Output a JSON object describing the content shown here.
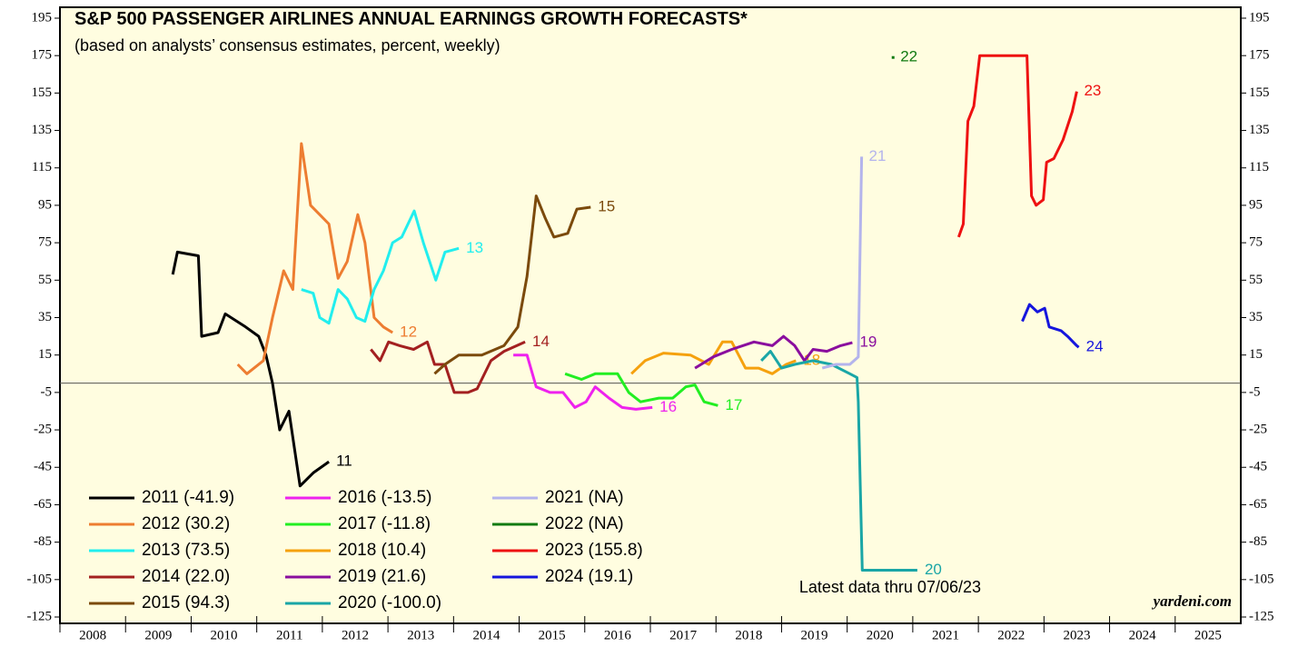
{
  "chart_data": {
    "type": "line",
    "title": "S&P 500 PASSENGER AIRLINES ANNUAL EARNINGS GROWTH FORECASTS*",
    "subtitle": "(based on analysts’ consensus estimates, percent, weekly)",
    "annotations": [
      "Latest data thru 07/06/23",
      "yardeni.com"
    ],
    "xlim": [
      2008,
      2026
    ],
    "xticks": [
      2008,
      2009,
      2010,
      2011,
      2012,
      2013,
      2014,
      2015,
      2016,
      2017,
      2018,
      2019,
      2020,
      2021,
      2022,
      2023,
      2024,
      2025
    ],
    "ylim": [
      -125,
      195
    ],
    "yticks": [
      -125,
      -105,
      -85,
      -65,
      -45,
      -25,
      -5,
      15,
      35,
      55,
      75,
      95,
      115,
      135,
      155,
      175,
      195
    ],
    "zero_line": 0,
    "series": [
      {
        "name": "2011 (-41.9)",
        "label": "11",
        "color": "#000000",
        "x": [
          2009.72,
          2009.79,
          2010.11,
          2010.16,
          2010.41,
          2010.52,
          2010.83,
          2011.03,
          2011.14,
          2011.24,
          2011.35,
          2011.49,
          2011.66,
          2011.86,
          2012.1
        ],
        "values": [
          58,
          70,
          68,
          25,
          27,
          37,
          30,
          25,
          15,
          0,
          -25,
          -15,
          -55,
          -48,
          -42
        ]
      },
      {
        "name": "2012 (30.2)",
        "label": "12",
        "color": "#ed7d31",
        "x": [
          2010.71,
          2010.85,
          2011.1,
          2011.24,
          2011.41,
          2011.55,
          2011.68,
          2011.82,
          2011.96,
          2012.1,
          2012.24,
          2012.38,
          2012.54,
          2012.65,
          2012.79,
          2012.93,
          2013.07
        ],
        "values": [
          10,
          5,
          12,
          35,
          60,
          50,
          128,
          95,
          90,
          85,
          56,
          65,
          90,
          75,
          35,
          30,
          27
        ]
      },
      {
        "name": "2013 (73.5)",
        "label": "13",
        "color": "#22eeee",
        "x": [
          2011.68,
          2011.86,
          2011.96,
          2012.1,
          2012.24,
          2012.38,
          2012.52,
          2012.65,
          2012.79,
          2012.93,
          2013.07,
          2013.21,
          2013.4,
          2013.54,
          2013.73,
          2013.87,
          2014.08
        ],
        "values": [
          50,
          48,
          35,
          32,
          50,
          45,
          35,
          33,
          50,
          60,
          75,
          78,
          92,
          75,
          55,
          70,
          72
        ]
      },
      {
        "name": "2014 (22.0)",
        "label": "14",
        "color": "#a32020",
        "x": [
          2012.74,
          2012.88,
          2013.01,
          2013.18,
          2013.39,
          2013.6,
          2013.71,
          2013.87,
          2014.01,
          2014.22,
          2014.36,
          2014.57,
          2014.77,
          2015.09
        ],
        "values": [
          18,
          12,
          22,
          20,
          18,
          22,
          10,
          10,
          -5,
          -5,
          -3,
          12,
          17,
          22
        ]
      },
      {
        "name": "2015 (94.3)",
        "label": "15",
        "color": "#7b4a0c",
        "x": [
          2013.71,
          2013.87,
          2014.08,
          2014.43,
          2014.77,
          2014.98,
          2015.12,
          2015.26,
          2015.4,
          2015.53,
          2015.74,
          2015.88,
          2016.09
        ],
        "values": [
          5,
          10,
          15,
          15,
          20,
          30,
          57,
          100,
          88,
          78,
          80,
          93,
          94
        ]
      },
      {
        "name": "2016 (-13.5)",
        "label": "16",
        "color": "#ee22ee",
        "x": [
          2014.91,
          2015.12,
          2015.26,
          2015.47,
          2015.67,
          2015.85,
          2016.02,
          2016.16,
          2016.37,
          2016.57,
          2016.78,
          2017.03
        ],
        "values": [
          15,
          15,
          -2,
          -5,
          -5,
          -13,
          -10,
          -2,
          -8,
          -13,
          -14,
          -13
        ]
      },
      {
        "name": "2017 (-11.8)",
        "label": "17",
        "color": "#22ee22",
        "x": [
          2015.7,
          2015.95,
          2016.16,
          2016.5,
          2016.67,
          2016.85,
          2017.13,
          2017.34,
          2017.54,
          2017.68,
          2017.82,
          2018.03
        ],
        "values": [
          5,
          2,
          5,
          5,
          -5,
          -10,
          -8,
          -8,
          -2,
          -1,
          -10,
          -12
        ]
      },
      {
        "name": "2018 (10.4)",
        "label": "18",
        "color": "#f5a10e",
        "x": [
          2016.71,
          2016.92,
          2017.2,
          2017.61,
          2017.89,
          2018.1,
          2018.24,
          2018.45,
          2018.65,
          2018.86,
          2019.07,
          2019.22
        ],
        "values": [
          5,
          12,
          16,
          15,
          10,
          22,
          22,
          8,
          8,
          5,
          10,
          12
        ]
      },
      {
        "name": "2019 (21.6)",
        "label": "19",
        "color": "#8a0e9e",
        "x": [
          2017.68,
          2017.96,
          2018.24,
          2018.58,
          2018.86,
          2019.03,
          2019.2,
          2019.35,
          2019.48,
          2019.69,
          2019.9,
          2020.08
        ],
        "values": [
          8,
          14,
          18,
          22,
          20,
          25,
          20,
          12,
          18,
          17,
          20,
          21.6
        ]
      },
      {
        "name": "2020 (-100.0)",
        "label": "20",
        "color": "#1aa6a6",
        "x": [
          2018.69,
          2018.83,
          2019.0,
          2019.2,
          2019.48,
          2019.76,
          2020.04,
          2020.15,
          2020.17,
          2020.23,
          2021.07
        ],
        "values": [
          12,
          17,
          8,
          10,
          12,
          10,
          5,
          3,
          -10,
          -100,
          -100
        ]
      },
      {
        "name": "2021 (NA)",
        "label": "21",
        "color": "#b4b4ec",
        "x": [
          2019.62,
          2019.83,
          2020.04,
          2020.17,
          2020.22
        ],
        "values": [
          8,
          10,
          10,
          14,
          121
        ]
      },
      {
        "name": "2022 (NA)",
        "label": "22",
        "color": "#117a11",
        "x": [
          2020.7
        ],
        "values": [
          174
        ]
      },
      {
        "name": "2023 (155.8)",
        "label": "23",
        "color": "#ee1111",
        "x": [
          2021.7,
          2021.77,
          2021.84,
          2021.93,
          2022.02,
          2022.74,
          2022.81,
          2022.88,
          2022.99,
          2023.04,
          2023.15,
          2023.29,
          2023.43,
          2023.5
        ],
        "values": [
          78,
          85,
          140,
          148,
          175,
          175,
          100,
          95,
          98,
          118,
          120,
          130,
          145,
          155.8
        ]
      },
      {
        "name": "2024 (19.1)",
        "label": "24",
        "color": "#1515dd",
        "x": [
          2022.67,
          2022.78,
          2022.9,
          2023.01,
          2023.08,
          2023.26,
          2023.36,
          2023.5,
          2023.53
        ],
        "values": [
          33,
          42,
          38,
          40,
          30,
          28,
          25,
          20,
          19.1
        ]
      }
    ]
  }
}
